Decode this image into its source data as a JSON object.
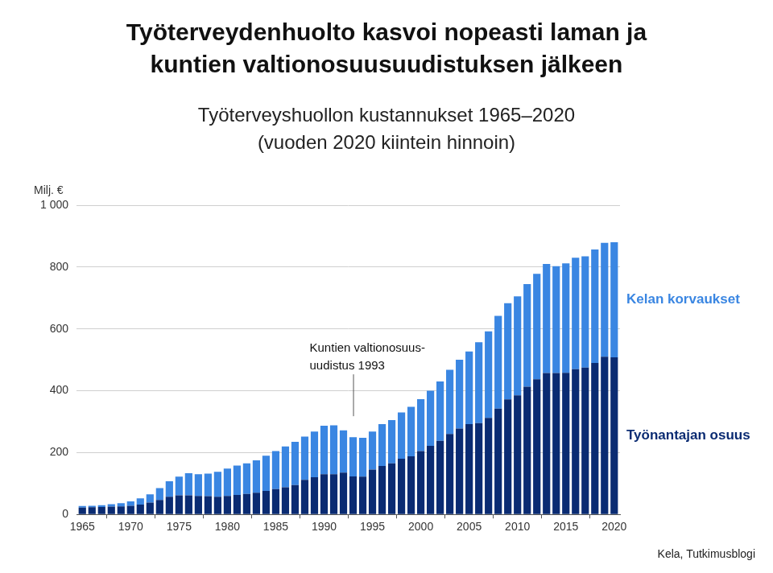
{
  "chart_data": {
    "type": "bar",
    "title": [
      "Työterveydenhuolto kasvoi nopeasti laman ja",
      "kuntien valtionosuusuudistuksen jälkeen"
    ],
    "subtitle": [
      "Työterveyshuollon kustannukset 1965–2020",
      "(vuoden 2020 kiintein hinnoin)"
    ],
    "y_label": "Milj. €",
    "source": "Kela, Tutkimusblogi",
    "x": [
      1965,
      1966,
      1967,
      1968,
      1969,
      1970,
      1971,
      1972,
      1973,
      1974,
      1975,
      1976,
      1977,
      1978,
      1979,
      1980,
      1981,
      1982,
      1983,
      1984,
      1985,
      1986,
      1987,
      1988,
      1989,
      1990,
      1991,
      1992,
      1993,
      1994,
      1995,
      1996,
      1997,
      1998,
      1999,
      2000,
      2001,
      2002,
      2003,
      2004,
      2005,
      2006,
      2007,
      2008,
      2009,
      2010,
      2011,
      2012,
      2013,
      2014,
      2015,
      2016,
      2017,
      2018,
      2019,
      2020
    ],
    "xlim": [
      1964.4,
      2020.6
    ],
    "xticks": [
      1965,
      1970,
      1975,
      1980,
      1985,
      1990,
      1995,
      2000,
      2005,
      2010,
      2015,
      2020
    ],
    "ylim": [
      0,
      1000
    ],
    "yticks": [
      0,
      200,
      400,
      600,
      800,
      {
        "value": 1000,
        "label": "1 000"
      }
    ],
    "stacked": true,
    "grid": true,
    "series": [
      {
        "name": "Työnantajan osuus",
        "color": "#0a2b72",
        "values": [
          22,
          23,
          24,
          25,
          26,
          28,
          32,
          38,
          47,
          57,
          62,
          62,
          60,
          59,
          57,
          60,
          63,
          66,
          70,
          76,
          82,
          88,
          95,
          112,
          120,
          130,
          130,
          135,
          123,
          122,
          145,
          157,
          165,
          180,
          188,
          205,
          222,
          238,
          260,
          278,
          292,
          295,
          312,
          342,
          372,
          385,
          413,
          437,
          457,
          457,
          458,
          470,
          475,
          490,
          510,
          508
        ]
      },
      {
        "name": "Kelan korvaukset",
        "color": "#3a86e2",
        "values": [
          5,
          5,
          6,
          8,
          10,
          14,
          20,
          27,
          38,
          50,
          60,
          71,
          70,
          73,
          81,
          88,
          95,
          99,
          105,
          114,
          123,
          132,
          140,
          140,
          148,
          157,
          158,
          137,
          127,
          126,
          123,
          135,
          140,
          150,
          160,
          168,
          178,
          192,
          208,
          222,
          235,
          262,
          280,
          300,
          311,
          320,
          332,
          341,
          353,
          346,
          354,
          360,
          360,
          367,
          368,
          372
        ]
      }
    ],
    "annotations": [
      {
        "text": [
          "Kuntien valtionosuus-",
          "uudistus 1993"
        ],
        "x": 1993
      }
    ]
  }
}
